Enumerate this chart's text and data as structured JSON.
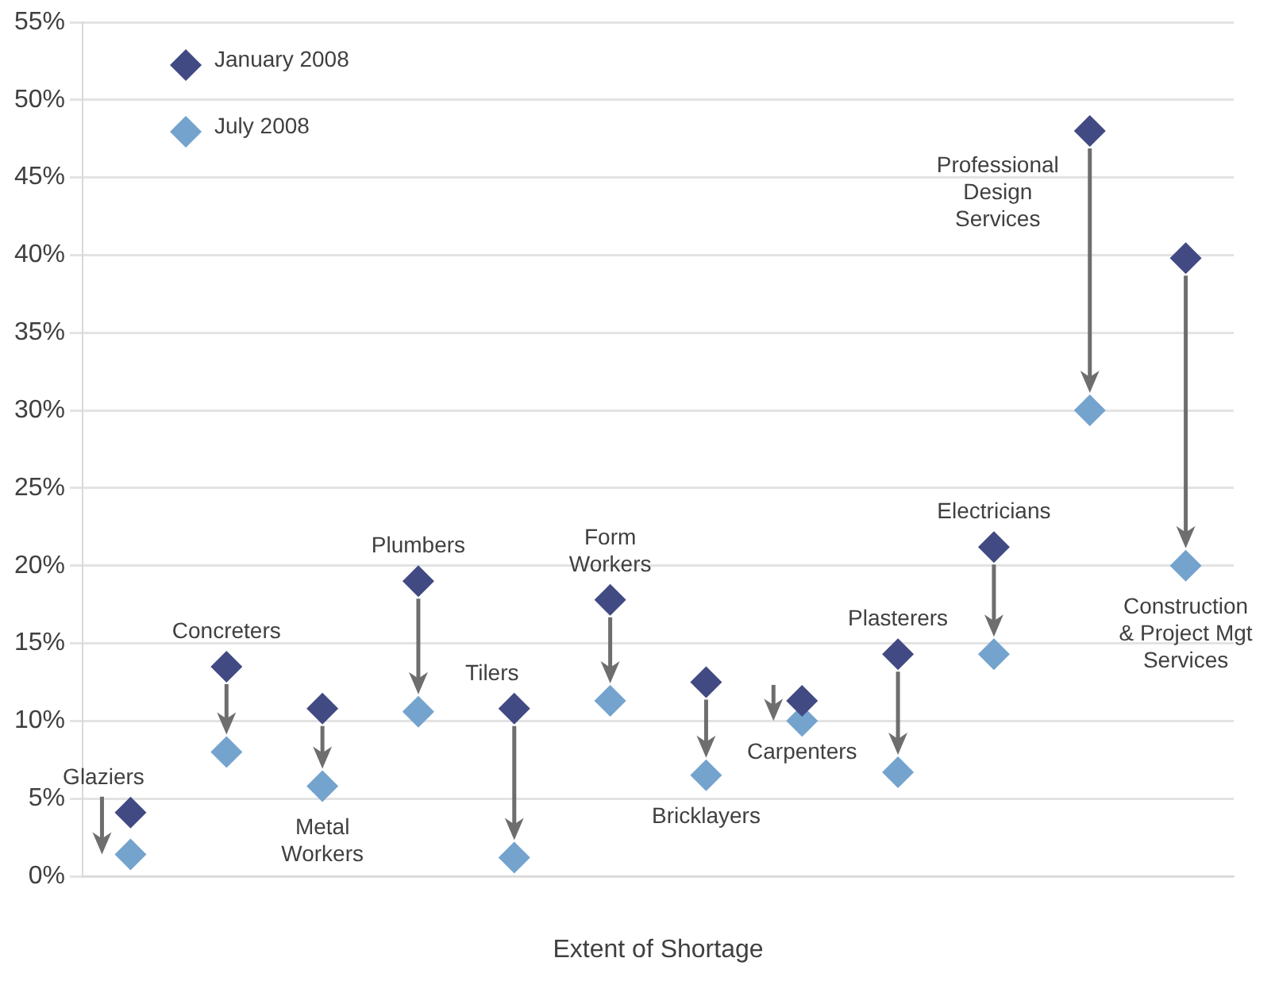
{
  "chart_data": {
    "type": "scatter",
    "xlabel": "Extent of Shortage",
    "categories": [
      null,
      null,
      null,
      null,
      null,
      null,
      null,
      null,
      null,
      null,
      null,
      null
    ],
    "series": [
      {
        "name": "January 2008",
        "color": "#414a82",
        "values": [
          4.1,
          13.5,
          10.8,
          19.0,
          10.8,
          17.8,
          12.5,
          11.3,
          14.3,
          21.2,
          48.0,
          39.8
        ]
      },
      {
        "name": "July 2008",
        "color": "#74a3cd",
        "values": [
          1.4,
          8.0,
          5.8,
          10.6,
          1.2,
          11.3,
          6.5,
          10.0,
          6.7,
          14.3,
          30.0,
          20.0
        ]
      }
    ],
    "annotations": [
      "Glaziers",
      "Concreters",
      "Metal Workers",
      "Plumbers",
      "Tilers",
      "Form Workers",
      "Bricklayers",
      "Carpenters",
      "Plasterers",
      "Electricians",
      "Professional Design Services",
      "Construction & Project Mgt Services"
    ],
    "ylim": [
      0,
      55
    ],
    "yticks": [
      {
        "value": 0,
        "label": "0%"
      },
      {
        "value": 5,
        "label": "5%"
      },
      {
        "value": 10,
        "label": "10%"
      },
      {
        "value": 15,
        "label": "15%"
      },
      {
        "value": 20,
        "label": "20%"
      },
      {
        "value": 25,
        "label": "25%"
      },
      {
        "value": 30,
        "label": "30%"
      },
      {
        "value": 35,
        "label": "35%"
      },
      {
        "value": 40,
        "label": "40%"
      },
      {
        "value": 45,
        "label": "45%"
      },
      {
        "value": 50,
        "label": "50%"
      },
      {
        "value": 55,
        "label": "55%"
      }
    ],
    "grid": "y",
    "legend": "top left",
    "marker": "diamond"
  }
}
